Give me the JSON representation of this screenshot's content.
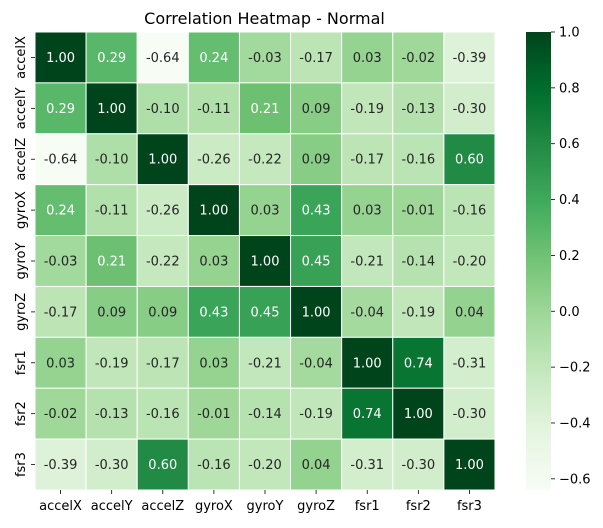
{
  "chart_data": {
    "type": "heatmap",
    "title": "Correlation Heatmap - Normal",
    "xlabel": "",
    "ylabel": "",
    "x_labels": [
      "accelX",
      "accelY",
      "accelZ",
      "gyroX",
      "gyroY",
      "gyroZ",
      "fsr1",
      "fsr2",
      "fsr3"
    ],
    "y_labels": [
      "accelX",
      "accelY",
      "accelZ",
      "gyroX",
      "gyroY",
      "gyroZ",
      "fsr1",
      "fsr2",
      "fsr3"
    ],
    "values": [
      [
        1.0,
        0.29,
        -0.64,
        0.24,
        -0.03,
        -0.17,
        0.03,
        -0.02,
        -0.39
      ],
      [
        0.29,
        1.0,
        -0.1,
        -0.11,
        0.21,
        0.09,
        -0.19,
        -0.13,
        -0.3
      ],
      [
        -0.64,
        -0.1,
        1.0,
        -0.26,
        -0.22,
        0.09,
        -0.17,
        -0.16,
        0.6
      ],
      [
        0.24,
        -0.11,
        -0.26,
        1.0,
        0.03,
        0.43,
        0.03,
        -0.01,
        -0.16
      ],
      [
        -0.03,
        0.21,
        -0.22,
        0.03,
        1.0,
        0.45,
        -0.21,
        -0.14,
        -0.2
      ],
      [
        -0.17,
        0.09,
        0.09,
        0.43,
        0.45,
        1.0,
        -0.04,
        -0.19,
        0.04
      ],
      [
        0.03,
        -0.19,
        -0.17,
        0.03,
        -0.21,
        -0.04,
        1.0,
        0.74,
        -0.31
      ],
      [
        -0.02,
        -0.13,
        -0.16,
        -0.01,
        -0.14,
        -0.19,
        0.74,
        1.0,
        -0.3
      ],
      [
        -0.39,
        -0.3,
        0.6,
        -0.16,
        -0.2,
        0.04,
        -0.31,
        -0.3,
        1.0
      ]
    ],
    "colormap": "Greens",
    "vmin": -0.64,
    "vmax": 1.0,
    "colorbar_ticks": [
      1.0,
      0.8,
      0.6,
      0.4,
      0.2,
      0.0,
      -0.2,
      -0.4,
      -0.6
    ],
    "colorbar_tick_labels": [
      "1.0",
      "0.8",
      "0.6",
      "0.4",
      "0.2",
      "0.0",
      "−0.2",
      "−0.4",
      "−0.6"
    ],
    "annotation_format": "0.00",
    "grid": false,
    "legend": "colorbar-right"
  }
}
